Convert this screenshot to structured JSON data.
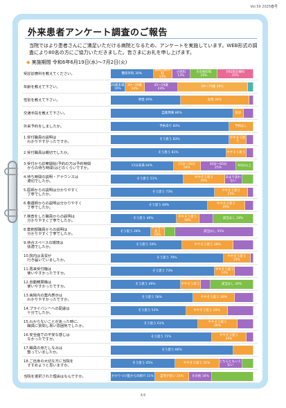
{
  "header": {
    "issue": "Vol.59  2025春号"
  },
  "title": "外来患者アンケート調査のご報告",
  "intro": "当院ではより患者さんにご満足いただける病院となるため、アンケートを実施しています。WEB形式の調査により80名の方にご協力いただきました。皆さまにお礼を申し上げます。",
  "period": {
    "label": "実施期間",
    "value": "令和6年6月19日(水)～7月2日(火)"
  },
  "colors": {
    "blue": "#4a86c8",
    "orange": "#f4a23c",
    "purple": "#a06cc4",
    "green": "#7ec04a",
    "pink": "#e86a96",
    "teal": "#4db3b3",
    "yellow": "#e7d83c"
  },
  "rows": [
    {
      "q": "受診診療科を教えてください。",
      "segs": [
        {
          "label": "整形外科 30%",
          "pct": 30,
          "color": "blue"
        },
        {
          "label": "歯科口腔外科\n13%",
          "pct": 13,
          "color": "orange"
        },
        {
          "label": "小児科\n13%",
          "pct": 13,
          "color": "purple"
        },
        {
          "label": "その他の科\n19%",
          "pct": 19,
          "color": "green"
        },
        {
          "label": "外科系診療科\n25%",
          "pct": 25,
          "color": "pink"
        }
      ]
    },
    {
      "q": "年齢を教えて下さい。",
      "segs": [
        {
          "label": "20歳未満\n10%",
          "pct": 10,
          "color": "blue"
        },
        {
          "label": "20～39歳\n14%",
          "pct": 14,
          "color": "orange"
        },
        {
          "label": "40～59歳\n23%",
          "pct": 23,
          "color": "purple"
        },
        {
          "label": "60～79歳 49%",
          "pct": 49,
          "color": "orange2"
        },
        {
          "label": "",
          "pct": 4,
          "color": "teal"
        }
      ]
    },
    {
      "q": "性別を教えて下さい。",
      "segs": [
        {
          "label": "男性 49%",
          "pct": 49,
          "color": "blue"
        },
        {
          "label": "女性 48%",
          "pct": 48,
          "color": "orange"
        },
        {
          "label": "",
          "pct": 3,
          "color": "purple"
        }
      ]
    },
    {
      "q": "交通手段を教えて下さい。",
      "segs": [
        {
          "label": "自家用車 86%",
          "pct": 86,
          "color": "blue"
        },
        {
          "label": "徒歩",
          "pct": 7,
          "color": "orange"
        },
        {
          "label": "",
          "pct": 7,
          "color": "purple"
        }
      ]
    },
    {
      "q": "外来予約をしましたか。",
      "segs": [
        {
          "label": "予約あり 83%",
          "pct": 83,
          "color": "blue"
        },
        {
          "label": "予約なし",
          "pct": 17,
          "color": "orange"
        }
      ]
    },
    {
      "q": "1.受付職員の説明は\n　わかりやすかったですか。",
      "segs": [
        {
          "label": "そう思う 83%",
          "pct": 83,
          "color": "blue"
        },
        {
          "label": "ややそう思う",
          "pct": 12,
          "color": "orange"
        },
        {
          "label": "",
          "pct": 5,
          "color": "purple"
        }
      ]
    },
    {
      "q": "2.受付職員は親切でしたか。",
      "segs": [
        {
          "label": "そう思う 81%",
          "pct": 81,
          "color": "blue"
        },
        {
          "label": "ややそう思う",
          "pct": 14,
          "color": "orange"
        },
        {
          "label": "",
          "pct": 5,
          "color": "purple"
        }
      ]
    },
    {
      "q": "3.受付から診察開始(予約の方は予約時間\n　からの待ち時間)はどのくらいですか。",
      "segs": [
        {
          "label": "15分未満 44%",
          "pct": 44,
          "color": "blue"
        },
        {
          "label": "15分～30分\n19%",
          "pct": 19,
          "color": "orange"
        },
        {
          "label": "30分～60分\n25%",
          "pct": 25,
          "color": "purple"
        },
        {
          "label": "60分以上",
          "pct": 12,
          "color": "green"
        }
      ]
    },
    {
      "q": "4.待ち時間の説明・アナウンスは\n　適切でしたか。",
      "segs": [
        {
          "label": "そう思う 51%",
          "pct": 51,
          "color": "blue"
        },
        {
          "label": "ややそう思う\n29%",
          "pct": 29,
          "color": "orange"
        },
        {
          "label": "あまり思わない",
          "pct": 12,
          "color": "purple"
        },
        {
          "label": "",
          "pct": 8,
          "color": "green"
        }
      ]
    },
    {
      "q": "5.医師からの説明は分かりやすく\n　丁寧でしたか。",
      "segs": [
        {
          "label": "そう思う 73%",
          "pct": 73,
          "color": "blue"
        },
        {
          "label": "ややそう思う\n23%",
          "pct": 23,
          "color": "orange"
        },
        {
          "label": "",
          "pct": 4,
          "color": "purple"
        }
      ]
    },
    {
      "q": "6.看護師からの説明は分かりやすく\n　丁寧でしたか。",
      "segs": [
        {
          "label": "そう思う 68%",
          "pct": 68,
          "color": "blue"
        },
        {
          "label": "ややそう思う\n26%",
          "pct": 26,
          "color": "orange"
        },
        {
          "label": "",
          "pct": 6,
          "color": "purple"
        }
      ]
    },
    {
      "q": "7.検査をした職員からの説明は\n　分かりやすく丁寧でしたか。",
      "segs": [
        {
          "label": "そう思う 46%",
          "pct": 46,
          "color": "blue"
        },
        {
          "label": "ややそう思う\n16%",
          "pct": 16,
          "color": "orange"
        },
        {
          "label": "",
          "pct": 10,
          "color": "purple"
        },
        {
          "label": "該当なし 28%",
          "pct": 28,
          "color": "green"
        }
      ]
    },
    {
      "q": "8.薬剤部職員からの説明は\n　分かりやすく丁寧でしたか。",
      "segs": [
        {
          "label": "そう思う 28%",
          "pct": 28,
          "color": "blue"
        },
        {
          "label": "ややそう思う\n10%",
          "pct": 10,
          "color": "orange"
        },
        {
          "label": "",
          "pct": 7,
          "color": "green"
        },
        {
          "label": "該当なし 55%",
          "pct": 55,
          "color": "purple"
        }
      ]
    },
    {
      "q": "9.待合スペースの環境は\n　快適でしたか。",
      "segs": [
        {
          "label": "そう思う 50%",
          "pct": 50,
          "color": "blue"
        },
        {
          "label": "ややそう思う 36%",
          "pct": 36,
          "color": "orange"
        },
        {
          "label": "",
          "pct": 14,
          "color": "purple"
        }
      ]
    },
    {
      "q": "10.院内は清潔が\n　行き届いていましたか。",
      "segs": [
        {
          "label": "そう思う 79%",
          "pct": 79,
          "color": "blue"
        },
        {
          "label": "ややそう思う\n19%",
          "pct": 19,
          "color": "orange"
        },
        {
          "label": "",
          "pct": 2,
          "color": "purple"
        }
      ]
    },
    {
      "q": "11.再来受付機は\n　使いやすかったですか。",
      "segs": [
        {
          "label": "そう思う 73%",
          "pct": 73,
          "color": "blue"
        },
        {
          "label": "ややそう思う\n14%",
          "pct": 14,
          "color": "orange"
        },
        {
          "label": "",
          "pct": 13,
          "color": "purple"
        }
      ]
    },
    {
      "q": "12.自動精算機は\n　使いやすかったですか。",
      "segs": [
        {
          "label": "そう思う 49%",
          "pct": 49,
          "color": "blue"
        },
        {
          "label": "ややそう思う",
          "pct": 14,
          "color": "orange"
        },
        {
          "label": "",
          "pct": 7,
          "color": "purple"
        },
        {
          "label": "該当なし 30%",
          "pct": 30,
          "color": "green"
        }
      ]
    },
    {
      "q": "13.病院内の案内表示は\n　わかりやすかったですか。",
      "segs": [
        {
          "label": "そう思う 58%",
          "pct": 58,
          "color": "blue"
        },
        {
          "label": "ややそう思う 29%",
          "pct": 29,
          "color": "orange"
        },
        {
          "label": "",
          "pct": 13,
          "color": "purple"
        }
      ]
    },
    {
      "q": "14.プライバシーへの配慮は\n　十分でしたか。",
      "segs": [
        {
          "label": "そう思う 53%",
          "pct": 53,
          "color": "blue"
        },
        {
          "label": "ややそう思う 29%",
          "pct": 29,
          "color": "orange"
        },
        {
          "label": "",
          "pct": 18,
          "color": "purple"
        }
      ]
    },
    {
      "q": "15.わからないことがあった時に、\n　職員に質問し易い雰囲気でしたか。",
      "segs": [
        {
          "label": "そう思う 61%",
          "pct": 61,
          "color": "blue"
        },
        {
          "label": "ややそう思う\n28%",
          "pct": 28,
          "color": "orange"
        },
        {
          "label": "",
          "pct": 11,
          "color": "purple"
        }
      ]
    },
    {
      "q": "16.安全面での不安な感じは\n　なかったですか。",
      "segs": [
        {
          "label": "そう思う 71%",
          "pct": 71,
          "color": "blue"
        },
        {
          "label": "ややそう思う\n24%",
          "pct": 24,
          "color": "orange"
        },
        {
          "label": "",
          "pct": 5,
          "color": "purple"
        }
      ]
    },
    {
      "q": "17.職員の身だしなみは\n　整っていましたか。",
      "segs": [
        {
          "label": "そう思う 86%",
          "pct": 86,
          "color": "blue"
        },
        {
          "label": "",
          "pct": 14,
          "color": "orange"
        }
      ]
    },
    {
      "q": "18.ご自身の大切な方に当院を\n　すすめようと思いますか。",
      "segs": [
        {
          "label": "そう思う 45%",
          "pct": 45,
          "color": "blue"
        },
        {
          "label": "ややそう思う 31%",
          "pct": 31,
          "color": "orange"
        },
        {
          "label": "どちらともいえない",
          "pct": 16,
          "color": "purple"
        },
        {
          "label": "",
          "pct": 8,
          "color": "green"
        }
      ]
    },
    {
      "q": "当院を選択された理由はなんですか。",
      "segs": [
        {
          "label": "かかりつけ医からの紹介 31%",
          "pct": 31,
          "color": "blue"
        },
        {
          "label": "自宅が近い 24%",
          "pct": 24,
          "color": "orange"
        },
        {
          "label": "その他 16%",
          "pct": 16,
          "color": "purple"
        },
        {
          "label": "",
          "pct": 29,
          "color": "green"
        }
      ]
    }
  ],
  "folio": "4/6"
}
